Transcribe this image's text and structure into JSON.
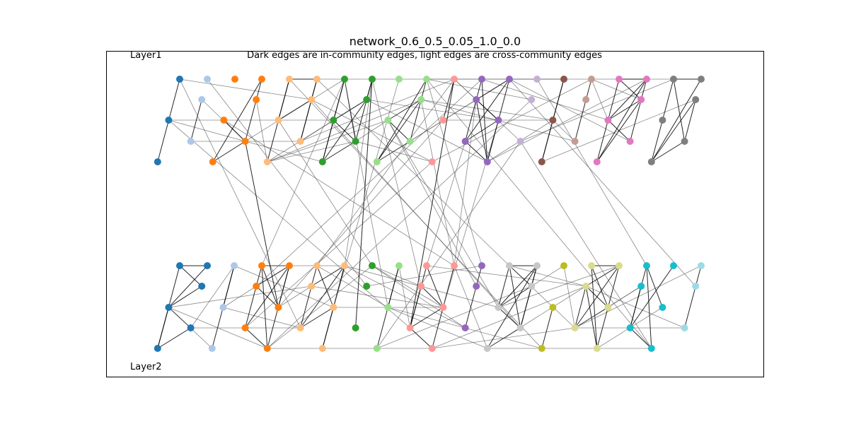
{
  "figure": {
    "title": "network_0.6_0.5_0.05_1.0_0.0",
    "subtitle": "Dark edges are in-community edges, light edges are cross-community edges",
    "layer1_label": "Layer1",
    "layer2_label": "Layer2"
  },
  "palette": [
    "#1f77b4",
    "#aec7e8",
    "#ff7f0e",
    "#ffbb78",
    "#2ca02c",
    "#98df8a",
    "#ff9896",
    "#9467bd",
    "#c5b0d5",
    "#8c564b",
    "#c49c94",
    "#e377c2",
    "#7f7f7f",
    "#c7c7c7",
    "#bcbd22",
    "#dbdb8d",
    "#17becf",
    "#9edae5"
  ],
  "layers": {
    "layer1_community_sizes": [
      5,
      5,
      5,
      5,
      5,
      5,
      5,
      5,
      5,
      5,
      5,
      5,
      5
    ],
    "layer2_community_sizes": [
      9,
      5,
      5,
      5,
      5,
      5,
      5,
      5,
      5,
      5,
      5,
      5,
      5
    ]
  },
  "edge_styles": {
    "in_community_color": "#000000",
    "cross_community_color": "#555555"
  }
}
